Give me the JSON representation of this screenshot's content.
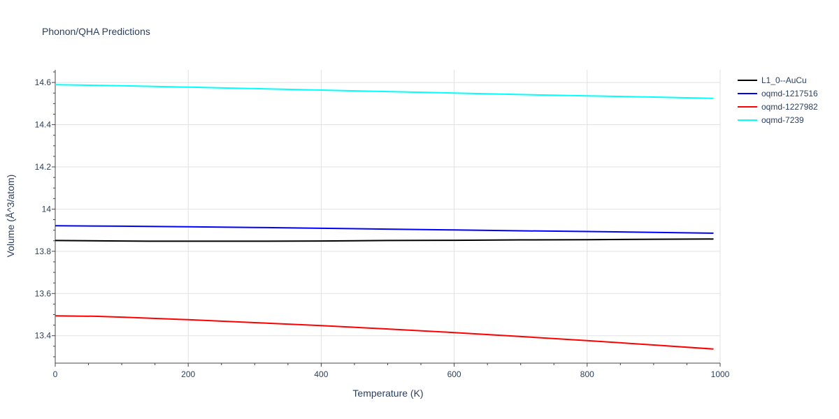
{
  "chart_data": {
    "type": "line",
    "title": "Phonon/QHA Predictions",
    "xlabel": "Temperature (K)",
    "ylabel": "Volume (Å^3/atom)",
    "xlim": [
      0,
      1000
    ],
    "ylim": [
      13.27,
      14.66
    ],
    "xticks": [
      0,
      200,
      400,
      600,
      800,
      1000
    ],
    "xtick_labels": [
      "0",
      "200",
      "400",
      "600",
      "800",
      "1000"
    ],
    "yticks": [
      13.4,
      13.6,
      13.8,
      14.0,
      14.2,
      14.4,
      14.6
    ],
    "ytick_labels": [
      "13.4",
      "13.6",
      "13.8",
      "14",
      "14.2",
      "14.4",
      "14.6"
    ],
    "grid": true,
    "legend_position": "top-right",
    "series": [
      {
        "name": "L1_0--AuCu",
        "color": "#000000",
        "x": [
          0,
          100,
          140,
          200,
          300,
          400,
          500,
          600,
          700,
          800,
          900,
          990
        ],
        "y": [
          13.851,
          13.849,
          13.848,
          13.848,
          13.848,
          13.849,
          13.851,
          13.852,
          13.854,
          13.855,
          13.857,
          13.858
        ]
      },
      {
        "name": "oqmd-1217516",
        "color": "#0000ff",
        "x": [
          0,
          100,
          200,
          300,
          400,
          500,
          600,
          700,
          800,
          900,
          990
        ],
        "y": [
          13.921,
          13.919,
          13.916,
          13.913,
          13.909,
          13.905,
          13.901,
          13.897,
          13.894,
          13.89,
          13.886
        ]
      },
      {
        "name": "oqmd-1227982",
        "color": "#ff0000",
        "x": [
          0,
          60,
          100,
          200,
          300,
          400,
          500,
          600,
          700,
          800,
          900,
          990
        ],
        "y": [
          13.494,
          13.492,
          13.488,
          13.476,
          13.462,
          13.448,
          13.432,
          13.415,
          13.396,
          13.377,
          13.356,
          13.337
        ]
      },
      {
        "name": "oqmd-7239",
        "color": "#00ffff",
        "x": [
          0,
          100,
          200,
          300,
          400,
          500,
          600,
          700,
          800,
          900,
          990
        ],
        "y": [
          14.59,
          14.585,
          14.578,
          14.571,
          14.564,
          14.557,
          14.55,
          14.543,
          14.537,
          14.531,
          14.525
        ]
      }
    ]
  }
}
